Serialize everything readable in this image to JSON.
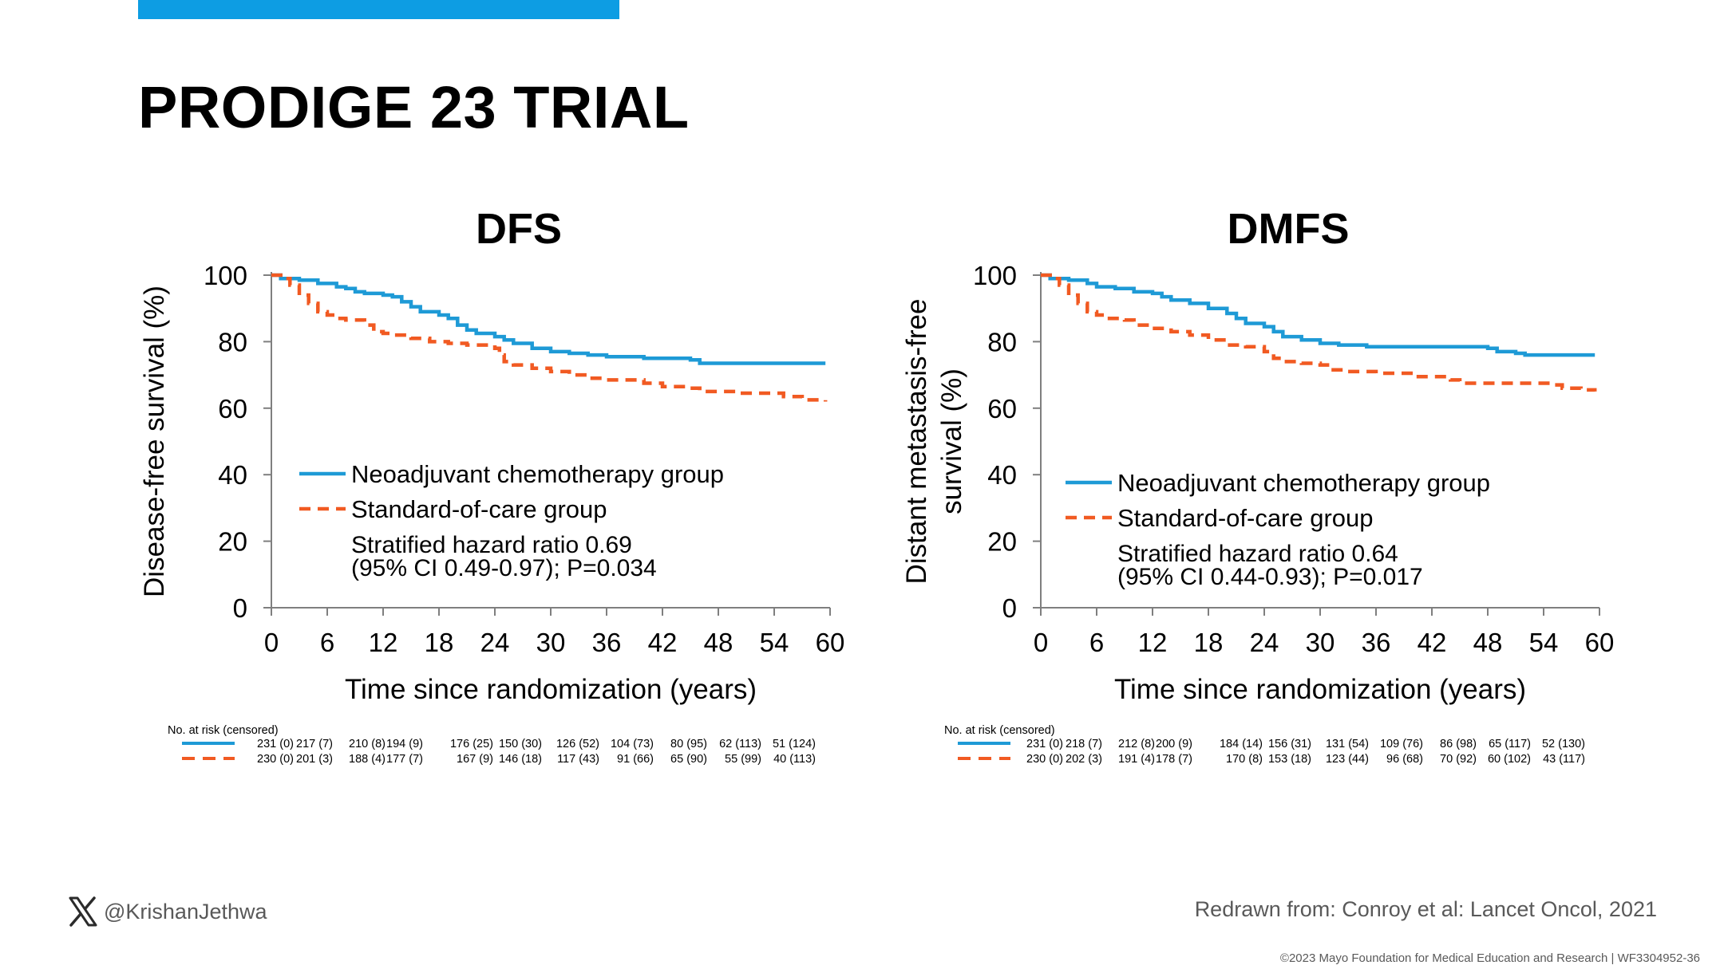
{
  "slide": {
    "title": "PRODIGE 23 TRIAL",
    "accent_color": "#0d9de3",
    "handle": "@KrishanJethwa",
    "source": "Redrawn from: Conroy et al: Lancet Oncol, 2021",
    "copyright": "©2023 Mayo Foundation for Medical Education and Research  |  WF3304952-36"
  },
  "chart_data": [
    {
      "type": "line",
      "title": "DFS",
      "xlabel": "Time since randomization (years)",
      "ylabel": "Disease-free survival (%)",
      "xlim": [
        0,
        60
      ],
      "ylim": [
        0,
        100
      ],
      "xticks": [
        0,
        6,
        12,
        18,
        24,
        30,
        36,
        42,
        48,
        54,
        60
      ],
      "yticks": [
        0,
        20,
        40,
        60,
        80,
        100
      ],
      "series": [
        {
          "name": "Neoadjuvant chemotherapy group",
          "color": "#1e9ad6",
          "dash": "solid",
          "points": [
            [
              0,
              100
            ],
            [
              1,
              99
            ],
            [
              3,
              98.5
            ],
            [
              5,
              97.5
            ],
            [
              7,
              96.5
            ],
            [
              8,
              96
            ],
            [
              9,
              95
            ],
            [
              10,
              94.5
            ],
            [
              12,
              94
            ],
            [
              13,
              93.5
            ],
            [
              14,
              92
            ],
            [
              15,
              90.5
            ],
            [
              16,
              89
            ],
            [
              18,
              88
            ],
            [
              19,
              87
            ],
            [
              20,
              85
            ],
            [
              21,
              83.5
            ],
            [
              22,
              82.5
            ],
            [
              24,
              81.5
            ],
            [
              25,
              80.5
            ],
            [
              26,
              79.5
            ],
            [
              28,
              78
            ],
            [
              30,
              77
            ],
            [
              32,
              76.5
            ],
            [
              34,
              76
            ],
            [
              36,
              75.5
            ],
            [
              40,
              75
            ],
            [
              43,
              75
            ],
            [
              45,
              74.5
            ],
            [
              46,
              73.5
            ],
            [
              50,
              73.5
            ],
            [
              55,
              73.5
            ],
            [
              59.5,
              73.5
            ]
          ]
        },
        {
          "name": "Standard-of-care group",
          "color": "#f15a22",
          "dash": "dashed",
          "points": [
            [
              0,
              100
            ],
            [
              1,
              99
            ],
            [
              2,
              97
            ],
            [
              3,
              94
            ],
            [
              4,
              91.5
            ],
            [
              5,
              89
            ],
            [
              6,
              88
            ],
            [
              7,
              87
            ],
            [
              8,
              86.5
            ],
            [
              10,
              85
            ],
            [
              11,
              83
            ],
            [
              12,
              82.5
            ],
            [
              13,
              82
            ],
            [
              15,
              81
            ],
            [
              17,
              80
            ],
            [
              19,
              79.5
            ],
            [
              21,
              79
            ],
            [
              24,
              78
            ],
            [
              24.5,
              76
            ],
            [
              25,
              74
            ],
            [
              26,
              73
            ],
            [
              28,
              72
            ],
            [
              30,
              71
            ],
            [
              32,
              70
            ],
            [
              34,
              69
            ],
            [
              36,
              68.5
            ],
            [
              40,
              67.5
            ],
            [
              42,
              66.5
            ],
            [
              45,
              66
            ],
            [
              46,
              65
            ],
            [
              50,
              64.5
            ],
            [
              53,
              64.5
            ],
            [
              55,
              63.5
            ],
            [
              57,
              62.5
            ],
            [
              59.5,
              62
            ]
          ]
        }
      ],
      "legend": {
        "placement": "center-left",
        "items": [
          "Neoadjuvant chemotherapy group",
          "Standard-of-care group"
        ],
        "hr_line1": "Stratified hazard ratio 0.69",
        "hr_line2": "(95% CI 0.49-0.97); P=0.034"
      },
      "risk_table": {
        "header": "No. at risk (censored)",
        "rows": [
          [
            "231 (0)",
            "217 (7)",
            "210 (8)",
            "194 (9)",
            "176 (25)",
            "150 (30)",
            "126 (52)",
            "104 (73)",
            "80 (95)",
            "62 (113)",
            "51 (124)"
          ],
          [
            "230 (0)",
            "201 (3)",
            "188 (4)",
            "177 (7)",
            "167 (9)",
            "146 (18)",
            "117 (43)",
            "91 (66)",
            "65 (90)",
            "55 (99)",
            "40 (113)"
          ]
        ]
      }
    },
    {
      "type": "line",
      "title": "DMFS",
      "xlabel": "Time since randomization (years)",
      "ylabel_line1": "Distant metastasis-free",
      "ylabel_line2": "survival  (%)",
      "xlim": [
        0,
        60
      ],
      "ylim": [
        0,
        100
      ],
      "xticks": [
        0,
        6,
        12,
        18,
        24,
        30,
        36,
        42,
        48,
        54,
        60
      ],
      "yticks": [
        0,
        20,
        40,
        60,
        80,
        100
      ],
      "series": [
        {
          "name": "Neoadjuvant chemotherapy group",
          "color": "#1e9ad6",
          "dash": "solid",
          "points": [
            [
              0,
              100
            ],
            [
              1,
              99
            ],
            [
              3,
              98.5
            ],
            [
              5,
              97.5
            ],
            [
              6,
              96.5
            ],
            [
              8,
              96
            ],
            [
              10,
              95
            ],
            [
              12,
              94.5
            ],
            [
              13,
              93.5
            ],
            [
              14,
              92.5
            ],
            [
              16,
              91.5
            ],
            [
              18,
              90
            ],
            [
              20,
              88.5
            ],
            [
              21,
              87
            ],
            [
              22,
              85.5
            ],
            [
              24,
              84.5
            ],
            [
              25,
              83
            ],
            [
              26,
              81.5
            ],
            [
              28,
              80.5
            ],
            [
              30,
              79.5
            ],
            [
              32,
              79
            ],
            [
              35,
              78.5
            ],
            [
              40,
              78.5
            ],
            [
              45,
              78.5
            ],
            [
              48,
              78
            ],
            [
              49,
              77
            ],
            [
              51,
              76.5
            ],
            [
              52,
              76
            ],
            [
              55,
              76
            ],
            [
              59.5,
              76
            ]
          ]
        },
        {
          "name": "Standard-of-care group",
          "color": "#f15a22",
          "dash": "dashed",
          "points": [
            [
              0,
              100
            ],
            [
              1,
              99
            ],
            [
              2,
              97
            ],
            [
              3,
              94
            ],
            [
              4,
              91.5
            ],
            [
              5,
              89
            ],
            [
              6,
              88
            ],
            [
              7,
              87
            ],
            [
              9,
              86.5
            ],
            [
              10,
              85
            ],
            [
              12,
              84
            ],
            [
              14,
              83
            ],
            [
              16,
              82
            ],
            [
              18,
              80.5
            ],
            [
              20,
              79
            ],
            [
              22,
              78.5
            ],
            [
              24,
              77
            ],
            [
              25,
              75
            ],
            [
              26,
              74
            ],
            [
              28,
              73.5
            ],
            [
              30,
              73
            ],
            [
              31,
              71.5
            ],
            [
              33,
              71
            ],
            [
              36,
              70.5
            ],
            [
              40,
              69.5
            ],
            [
              44,
              68.5
            ],
            [
              45,
              67.5
            ],
            [
              48,
              67.5
            ],
            [
              52,
              67.5
            ],
            [
              55,
              67
            ],
            [
              56,
              66
            ],
            [
              58,
              65.5
            ],
            [
              59.5,
              65
            ]
          ]
        }
      ],
      "legend": {
        "placement": "center-left",
        "items": [
          "Neoadjuvant chemotherapy group",
          "Standard-of-care group"
        ],
        "hr_line1": "Stratified hazard ratio 0.64",
        "hr_line2": "(95% CI 0.44-0.93); P=0.017"
      },
      "risk_table": {
        "header": "No. at risk (censored)",
        "rows": [
          [
            "231 (0)",
            "218 (7)",
            "212 (8)",
            "200 (9)",
            "184 (14)",
            "156 (31)",
            "131 (54)",
            "109 (76)",
            "86 (98)",
            "65 (117)",
            "52 (130)"
          ],
          [
            "230 (0)",
            "202 (3)",
            "191 (4)",
            "178 (7)",
            "170 (8)",
            "153 (18)",
            "123 (44)",
            "96 (68)",
            "70 (92)",
            "60 (102)",
            "43 (117)"
          ]
        ]
      }
    }
  ]
}
